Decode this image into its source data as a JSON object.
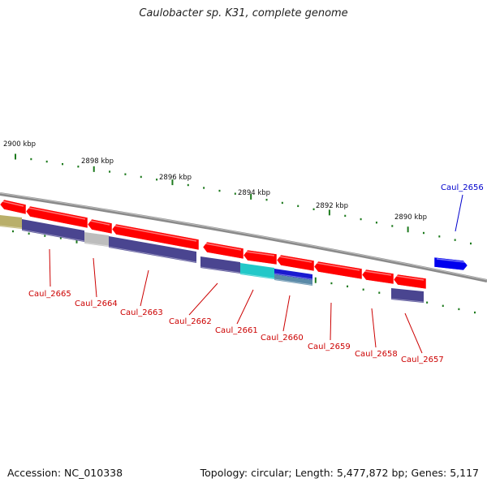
{
  "title": "Caulobacter sp. K31, complete genome",
  "footer": {
    "accession": "Accession: NC_010338",
    "stats": "Topology: circular; Length: 5,477,872 bp; Genes: 5,117"
  },
  "colors": {
    "backbone": "#7a7a7a",
    "tick": "#1d7a1d",
    "red": "#ff0000",
    "blue": "#0000ee",
    "purple": "#4a4590",
    "label_red": "#cc0000",
    "label_blue": "#0000cc"
  },
  "scale_labels": [
    "2900 kbp",
    "2898 kbp",
    "2896 kbp",
    "2894 kbp",
    "2892 kbp",
    "2890 kbp"
  ],
  "genes": [
    {
      "label": "Caul_2665",
      "color": "label_red"
    },
    {
      "label": "Caul_2664",
      "color": "label_red"
    },
    {
      "label": "Caul_2663",
      "color": "label_red"
    },
    {
      "label": "Caul_2662",
      "color": "label_red"
    },
    {
      "label": "Caul_2661",
      "color": "label_red"
    },
    {
      "label": "Caul_2660",
      "color": "label_red"
    },
    {
      "label": "Caul_2659",
      "color": "label_red"
    },
    {
      "label": "Caul_2658",
      "color": "label_red"
    },
    {
      "label": "Caul_2657",
      "color": "label_red"
    },
    {
      "label": "Caul_2656",
      "color": "label_blue"
    }
  ]
}
